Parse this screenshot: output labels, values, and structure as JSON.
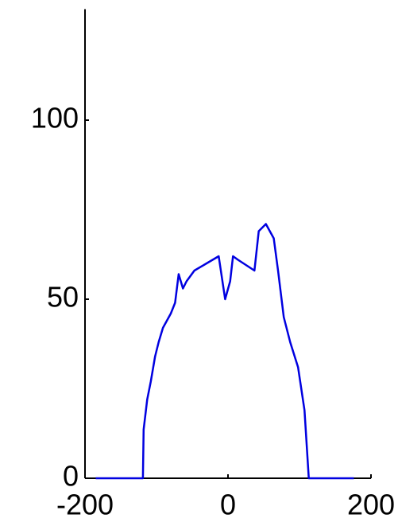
{
  "chart_data": {
    "type": "line",
    "x": [
      -185,
      -119,
      -118,
      -113,
      -108,
      -102,
      -97,
      -91,
      -80,
      -74,
      -69,
      -63,
      -58,
      -47,
      -30,
      -13,
      -4,
      3,
      7,
      14,
      37,
      43,
      53,
      64,
      70,
      78,
      87,
      98,
      107,
      113,
      176
    ],
    "values": [
      0,
      0,
      13.6,
      22,
      27,
      34,
      38,
      42,
      46,
      49,
      57,
      53,
      55,
      58,
      60,
      62,
      50,
      55,
      62,
      61,
      58,
      69,
      71,
      67,
      58,
      45,
      38,
      31,
      19,
      0,
      0
    ],
    "color": "#0000e0",
    "xlim": [
      -200,
      200
    ],
    "xticks": [
      -200,
      0,
      200
    ],
    "ylim": [
      0,
      131
    ],
    "yticks": [
      0,
      50,
      100
    ],
    "grid": false
  }
}
